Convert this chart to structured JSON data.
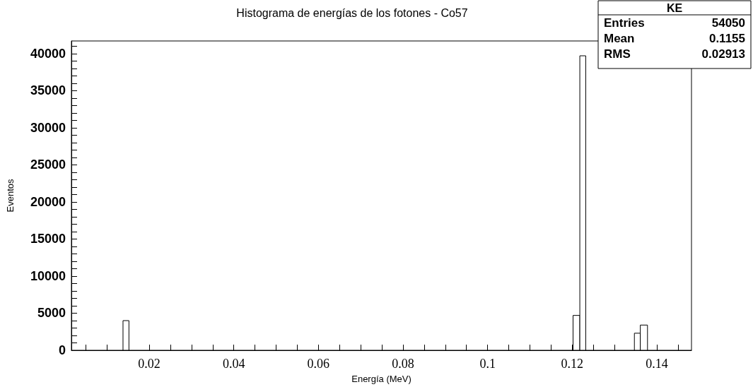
{
  "chart_data": {
    "type": "histogram",
    "title": "Histograma de energías de los fotones - Co57",
    "xlabel": "Energía (MeV)",
    "ylabel": "Eventos",
    "bins": [
      0.0138,
      0.0152,
      0.1202,
      0.1218,
      0.1232,
      0.1347,
      0.1361,
      0.1378
    ],
    "values": [
      4000,
      0,
      4700,
      39700,
      0,
      2300,
      3400
    ],
    "color": "#000000",
    "xlim": [
      0.0016,
      0.1482
    ],
    "xticks": [
      {
        "value": 0.005,
        "label": null
      },
      {
        "value": 0.01,
        "label": null
      },
      {
        "value": 0.015,
        "label": null
      },
      0.02,
      {
        "value": 0.025,
        "label": null
      },
      {
        "value": 0.03,
        "label": null
      },
      {
        "value": 0.035,
        "label": null
      },
      0.04,
      {
        "value": 0.045,
        "label": null
      },
      {
        "value": 0.05,
        "label": null
      },
      {
        "value": 0.055,
        "label": null
      },
      0.06,
      {
        "value": 0.065,
        "label": null
      },
      {
        "value": 0.07,
        "label": null
      },
      {
        "value": 0.075,
        "label": null
      },
      0.08,
      {
        "value": 0.085,
        "label": null
      },
      {
        "value": 0.09,
        "label": null
      },
      {
        "value": 0.095,
        "label": null
      },
      0.1,
      {
        "value": 0.105,
        "label": null
      },
      {
        "value": 0.11,
        "label": null
      },
      {
        "value": 0.115,
        "label": null
      },
      0.12,
      {
        "value": 0.125,
        "label": null
      },
      {
        "value": 0.13,
        "label": null
      },
      {
        "value": 0.135,
        "label": null
      },
      0.14,
      {
        "value": 0.145,
        "label": null
      }
    ],
    "ylim": [
      0,
      41700
    ],
    "yticks": [
      0,
      {
        "value": 1000,
        "label": null
      },
      {
        "value": 2000,
        "label": null
      },
      {
        "value": 3000,
        "label": null
      },
      {
        "value": 4000,
        "label": null
      },
      5000,
      {
        "value": 6000,
        "label": null
      },
      {
        "value": 7000,
        "label": null
      },
      {
        "value": 8000,
        "label": null
      },
      {
        "value": 9000,
        "label": null
      },
      10000,
      {
        "value": 11000,
        "label": null
      },
      {
        "value": 12000,
        "label": null
      },
      {
        "value": 13000,
        "label": null
      },
      {
        "value": 14000,
        "label": null
      },
      15000,
      {
        "value": 16000,
        "label": null
      },
      {
        "value": 17000,
        "label": null
      },
      {
        "value": 18000,
        "label": null
      },
      {
        "value": 19000,
        "label": null
      },
      20000,
      {
        "value": 21000,
        "label": null
      },
      {
        "value": 22000,
        "label": null
      },
      {
        "value": 23000,
        "label": null
      },
      {
        "value": 24000,
        "label": null
      },
      25000,
      {
        "value": 26000,
        "label": null
      },
      {
        "value": 27000,
        "label": null
      },
      {
        "value": 28000,
        "label": null
      },
      {
        "value": 29000,
        "label": null
      },
      30000,
      {
        "value": 31000,
        "label": null
      },
      {
        "value": 32000,
        "label": null
      },
      {
        "value": 33000,
        "label": null
      },
      {
        "value": 34000,
        "label": null
      },
      35000,
      {
        "value": 36000,
        "label": null
      },
      {
        "value": 37000,
        "label": null
      },
      {
        "value": 38000,
        "label": null
      },
      {
        "value": 39000,
        "label": null
      },
      40000,
      {
        "value": 41000,
        "label": null
      }
    ],
    "grid": false,
    "annotations": [
      "KE",
      "Entries",
      "54050",
      "Mean",
      "0.1155",
      "RMS",
      "0.02913"
    ]
  }
}
